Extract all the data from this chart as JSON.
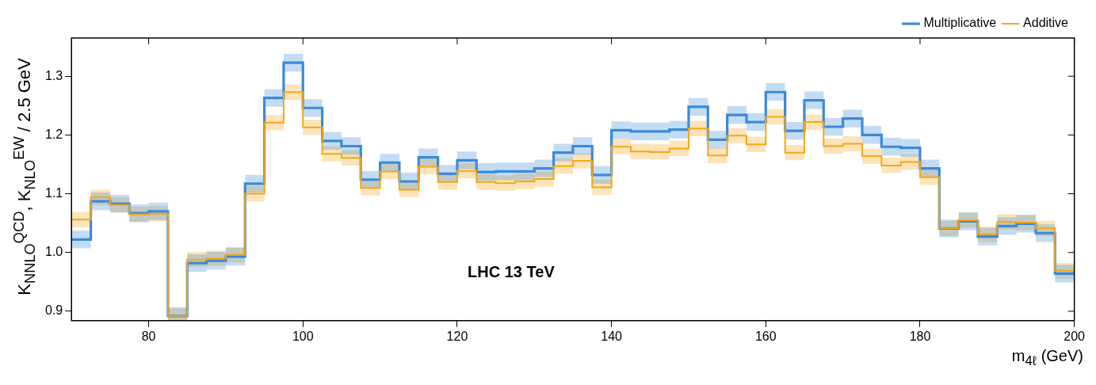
{
  "chart_data": {
    "type": "step",
    "x": [
      70,
      72.5,
      75,
      77.5,
      80,
      82.5,
      85,
      87.5,
      90,
      92.5,
      95,
      97.5,
      100,
      102.5,
      105,
      107.5,
      110,
      112.5,
      115,
      117.5,
      120,
      122.5,
      125,
      127.5,
      130,
      132.5,
      135,
      137.5,
      140,
      142.5,
      145,
      147.5,
      150,
      152.5,
      155,
      157.5,
      160,
      162.5,
      165,
      167.5,
      170,
      172.5,
      175,
      177.5,
      180,
      182.5,
      185,
      187.5,
      190,
      192.5,
      195,
      197.5,
      200
    ],
    "series": [
      {
        "name": "Multiplicative",
        "color": "#3a8ad8",
        "values": [
          1.022,
          1.087,
          1.083,
          1.067,
          1.07,
          0.892,
          0.982,
          0.986,
          0.993,
          1.117,
          1.263,
          1.323,
          1.246,
          1.19,
          1.181,
          1.124,
          1.153,
          1.121,
          1.162,
          1.134,
          1.157,
          1.137,
          1.138,
          1.138,
          1.143,
          1.17,
          1.181,
          1.132,
          1.208,
          1.206,
          1.206,
          1.209,
          1.248,
          1.192,
          1.234,
          1.222,
          1.273,
          1.207,
          1.259,
          1.214,
          1.228,
          1.2,
          1.18,
          1.178,
          1.143,
          1.041,
          1.053,
          1.027,
          1.045,
          1.049,
          1.033,
          0.964,
          0.964
        ],
        "lower": [
          1.007,
          1.072,
          1.068,
          1.052,
          1.055,
          0.885,
          0.967,
          0.971,
          0.978,
          1.102,
          1.248,
          1.308,
          1.231,
          1.175,
          1.166,
          1.109,
          1.138,
          1.106,
          1.147,
          1.119,
          1.142,
          1.122,
          1.123,
          1.123,
          1.128,
          1.155,
          1.166,
          1.117,
          1.193,
          1.191,
          1.191,
          1.194,
          1.233,
          1.177,
          1.219,
          1.207,
          1.258,
          1.192,
          1.244,
          1.199,
          1.213,
          1.185,
          1.165,
          1.163,
          1.128,
          1.026,
          1.038,
          1.012,
          1.03,
          1.034,
          1.018,
          0.949,
          0.949
        ],
        "upper": [
          1.037,
          1.102,
          1.098,
          1.082,
          1.085,
          0.907,
          0.997,
          1.001,
          1.008,
          1.132,
          1.278,
          1.338,
          1.261,
          1.205,
          1.196,
          1.139,
          1.168,
          1.136,
          1.177,
          1.149,
          1.172,
          1.152,
          1.153,
          1.153,
          1.158,
          1.185,
          1.196,
          1.147,
          1.223,
          1.221,
          1.221,
          1.224,
          1.263,
          1.207,
          1.249,
          1.237,
          1.288,
          1.222,
          1.274,
          1.229,
          1.243,
          1.215,
          1.195,
          1.193,
          1.158,
          1.056,
          1.068,
          1.042,
          1.06,
          1.064,
          1.048,
          0.979,
          0.979
        ]
      },
      {
        "name": "Additive",
        "color": "#f5a614",
        "values": [
          1.056,
          1.094,
          1.081,
          1.065,
          1.066,
          0.892,
          0.988,
          0.99,
          0.996,
          1.1,
          1.221,
          1.273,
          1.213,
          1.168,
          1.161,
          1.11,
          1.138,
          1.107,
          1.146,
          1.12,
          1.139,
          1.12,
          1.118,
          1.121,
          1.125,
          1.147,
          1.156,
          1.111,
          1.18,
          1.172,
          1.171,
          1.177,
          1.211,
          1.165,
          1.199,
          1.184,
          1.231,
          1.17,
          1.222,
          1.181,
          1.185,
          1.164,
          1.148,
          1.154,
          1.128,
          1.041,
          1.055,
          1.031,
          1.052,
          1.051,
          1.041,
          0.969,
          0.969
        ],
        "lower": [
          1.043,
          1.081,
          1.068,
          1.052,
          1.053,
          0.885,
          0.975,
          0.977,
          0.983,
          1.087,
          1.208,
          1.26,
          1.2,
          1.155,
          1.148,
          1.097,
          1.125,
          1.094,
          1.133,
          1.107,
          1.126,
          1.107,
          1.105,
          1.108,
          1.112,
          1.134,
          1.143,
          1.098,
          1.167,
          1.159,
          1.158,
          1.164,
          1.198,
          1.152,
          1.186,
          1.171,
          1.218,
          1.157,
          1.209,
          1.168,
          1.172,
          1.151,
          1.135,
          1.141,
          1.115,
          1.028,
          1.042,
          1.018,
          1.039,
          1.038,
          1.028,
          0.956,
          0.956
        ],
        "upper": [
          1.069,
          1.107,
          1.094,
          1.078,
          1.079,
          0.905,
          1.001,
          1.003,
          1.009,
          1.113,
          1.234,
          1.286,
          1.226,
          1.181,
          1.174,
          1.123,
          1.151,
          1.12,
          1.159,
          1.133,
          1.152,
          1.133,
          1.131,
          1.134,
          1.138,
          1.16,
          1.169,
          1.124,
          1.193,
          1.185,
          1.184,
          1.19,
          1.224,
          1.178,
          1.212,
          1.197,
          1.244,
          1.183,
          1.235,
          1.194,
          1.198,
          1.177,
          1.161,
          1.167,
          1.141,
          1.054,
          1.068,
          1.044,
          1.065,
          1.064,
          1.054,
          0.982,
          0.982
        ]
      }
    ],
    "xlim": [
      70,
      200
    ],
    "xticks": [
      80,
      100,
      120,
      140,
      160,
      180,
      200
    ],
    "ylim": [
      0.884,
      1.365
    ],
    "yticks": [
      {
        "value": 0.9,
        "label": "0.9"
      },
      {
        "value": 1.0,
        "label": "1.0"
      },
      {
        "value": 1.1,
        "label": "1.1"
      },
      {
        "value": 1.2,
        "label": "1.2"
      },
      {
        "value": 1.3,
        "label": "1.3"
      }
    ],
    "xlabel": "m$_{4ℓ}$ (GeV)",
    "ylabel": "K$_{NNLO}$$^{QCD}$, K$_{NLO}$$^{EW}$ / 2.5 GeV",
    "annotations": [
      "LHC 13 TeV"
    ],
    "legend": "top right",
    "grid": false
  }
}
